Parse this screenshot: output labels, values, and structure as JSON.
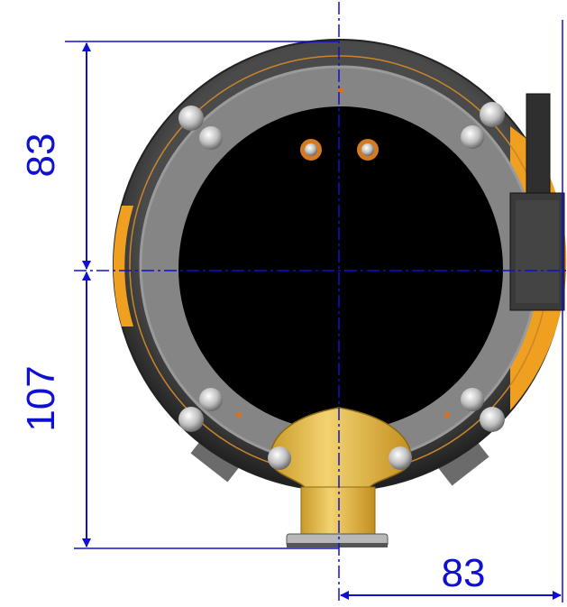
{
  "dimensions": {
    "upper_height": "83",
    "lower_height": "107",
    "right_width": "83"
  },
  "colors": {
    "dimension_line": "#1010d0",
    "housing_dark": "#3a3a3a",
    "housing_ring": "#5a5a5a",
    "inner_plate": "#858585",
    "window": "#000000",
    "accent_orange": "#f0a020",
    "flange_yellow": "#ecc24c"
  }
}
